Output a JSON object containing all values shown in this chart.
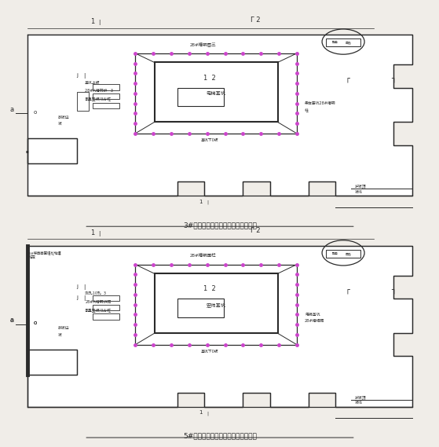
{
  "bg_color": "#f0ede8",
  "line_color": "#2a2a2a",
  "purple_color": "#cc44cc",
  "title1": "3#楼基坑开挖放坡及槽钢围护平面图",
  "title2": "5#楼基坑开挖放坡及槽钢围护平面图",
  "fig_w": 5.51,
  "fig_h": 5.6,
  "dpi": 100,
  "diagram1": {
    "top_pit_label": "28#槽钢图三",
    "left_label1": "基坑上板",
    "left_label2": "28#A槽钢排   3",
    "left_label3": "承重垫板/3方桩",
    "bottom_label": "基坑下0板",
    "slope_label1": "放坡边",
    "slope_label2": "坡",
    "right_label1": "柔体底坑28#槽钢",
    "right_label2": "柱",
    "inner_label1": "1  2",
    "inner_label2": "电梯基坑",
    "guard_label1": "护坡顶",
    "guard_label2": "坡线"
  },
  "diagram2": {
    "top_pit_label": "28#槽钢围栏",
    "extra_label1": "5#楼西面围墙处地壤",
    "extra_label2": "锚定",
    "left_label1": "测孔10孔  3",
    "left_label2": "28#A槽钢排距",
    "left_label3": "承重垫板/3方桩",
    "bottom_label": "基坑下0板",
    "slope_label1": "放坡边",
    "slope_label2": "坡",
    "right_label1": "电梯基坑",
    "right_label2": "2B#槽相距",
    "inner_label1": "1  2",
    "inner_label2": "宏帅基坑",
    "guard_label1": "护坡顶",
    "guard_label2": "坡线"
  }
}
